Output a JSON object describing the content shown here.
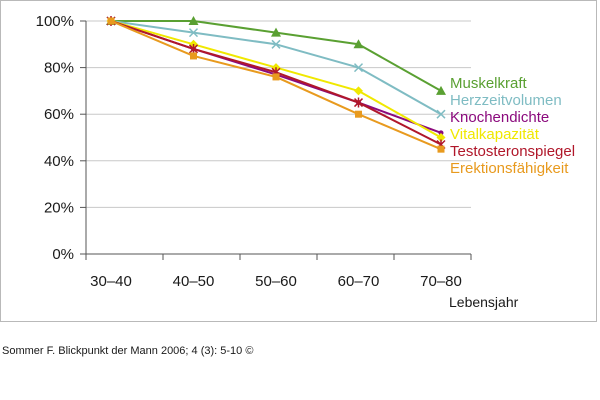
{
  "chart_data": {
    "type": "line",
    "categories": [
      "30–40",
      "40–50",
      "50–60",
      "60–70",
      "70–80"
    ],
    "ylim": [
      0,
      100
    ],
    "yticks": [
      0,
      20,
      40,
      60,
      80,
      100
    ],
    "ytick_labels": [
      "0%",
      "20%",
      "40%",
      "60%",
      "80%",
      "100%"
    ],
    "xlabel": "Lebensjahr",
    "ylabel": "",
    "grid": "horizontal",
    "legend_position": "right",
    "series": [
      {
        "name": "Muskelkraft",
        "color": "#5aa032",
        "marker": "triangle",
        "values": [
          100,
          100,
          95,
          90,
          70
        ]
      },
      {
        "name": "Herzzeitvolumen",
        "color": "#7fbcc3",
        "marker": "x",
        "values": [
          100,
          95,
          90,
          80,
          60
        ]
      },
      {
        "name": "Knochendichte",
        "color": "#8b0a7d",
        "marker": "circle",
        "values": [
          100,
          88,
          77,
          65,
          52
        ]
      },
      {
        "name": "Vitalkapazität",
        "color": "#f0e800",
        "marker": "diamond",
        "values": [
          100,
          90,
          80,
          70,
          50
        ]
      },
      {
        "name": "Testosteronspiegel",
        "color": "#b0172a",
        "marker": "star",
        "values": [
          100,
          88,
          78,
          65,
          47
        ]
      },
      {
        "name": "Erektionsfähigkeit",
        "color": "#e89a1e",
        "marker": "square",
        "values": [
          100,
          85,
          76,
          60,
          45
        ]
      }
    ]
  },
  "source": "Sommer F. Blickpunkt der Mann 2006; 4 (3): 5-10 ©"
}
